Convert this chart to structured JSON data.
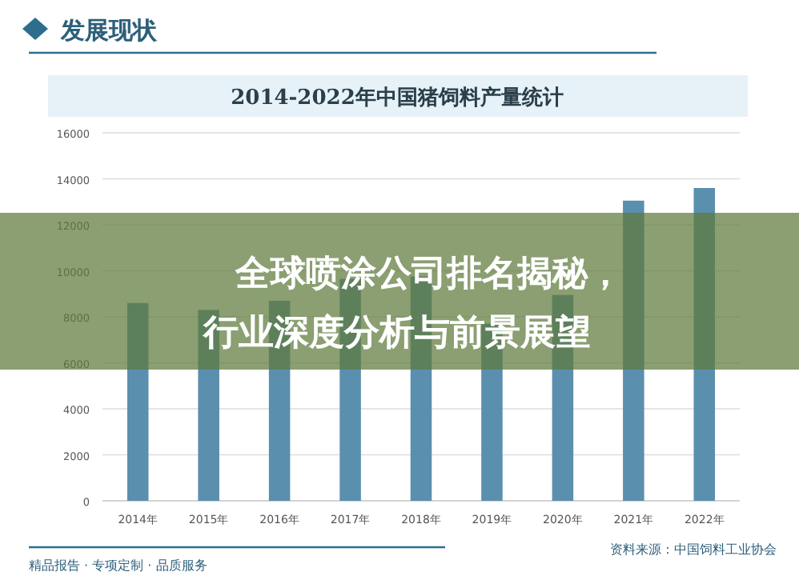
{
  "chart_data": {
    "type": "bar",
    "title": "2014-2022年中国猪饲料产量统计",
    "subtitle": "发展现状",
    "categories": [
      "2014年",
      "2015年",
      "2016年",
      "2017年",
      "2018年",
      "2019年",
      "2020年",
      "2021年",
      "2022年"
    ],
    "values": [
      8600,
      8300,
      8700,
      9650,
      9750,
      7700,
      8950,
      13050,
      13600
    ],
    "color": "#5a8fae",
    "ylim": [
      0,
      16000
    ],
    "yticks": [
      0,
      2000,
      4000,
      6000,
      8000,
      10000,
      12000,
      14000,
      16000
    ],
    "grid": "y",
    "annotations": [
      "全球喷涂公司排名揭秘，行业深度分析与前景展望",
      "资料来源：中国饲料工业协会",
      "精品报告 · 专项定制 · 品质服务"
    ]
  }
}
